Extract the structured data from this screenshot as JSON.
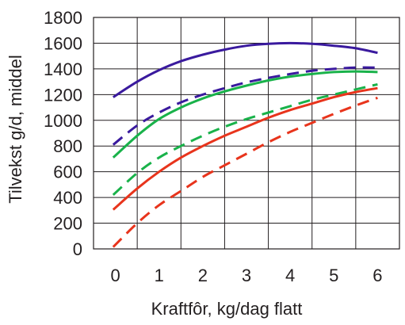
{
  "chart_data": {
    "type": "line",
    "xlabel": "Kraftfôr, kg/dag flatt",
    "ylabel": "Tilvekst g/d, middel",
    "xlim": [
      -0.5,
      6.5
    ],
    "ylim": [
      0,
      1800
    ],
    "x_ticks": [
      0,
      1,
      2,
      3,
      4,
      5,
      6
    ],
    "y_ticks": [
      0,
      200,
      400,
      600,
      800,
      1000,
      1200,
      1400,
      1600,
      1800
    ],
    "x_tick_labels": [
      "0",
      "1",
      "2",
      "3",
      "4",
      "5",
      "6"
    ],
    "y_tick_labels": [
      "0",
      "200",
      "400",
      "600",
      "800",
      "1000",
      "1200",
      "1400",
      "1600",
      "1800"
    ],
    "grid": true,
    "legend": "none",
    "series": [
      {
        "color": "#3a1a9e",
        "dash": "solid",
        "x": [
          -0.05,
          0.5,
          1,
          1.5,
          2,
          2.5,
          3,
          3.5,
          4,
          4.5,
          5,
          5.5,
          6
        ],
        "y": [
          1180,
          1300,
          1390,
          1460,
          1510,
          1550,
          1580,
          1595,
          1600,
          1595,
          1580,
          1560,
          1525
        ]
      },
      {
        "color": "#3a1a9e",
        "dash": "dashed",
        "x": [
          -0.05,
          0.5,
          1,
          1.5,
          2,
          2.5,
          3,
          3.5,
          4,
          4.5,
          5,
          5.5,
          6
        ],
        "y": [
          810,
          960,
          1060,
          1140,
          1200,
          1250,
          1295,
          1330,
          1360,
          1385,
          1400,
          1410,
          1410
        ]
      },
      {
        "color": "#19b24a",
        "dash": "solid",
        "x": [
          -0.05,
          0.5,
          1,
          1.5,
          2,
          2.5,
          3,
          3.5,
          4,
          4.5,
          5,
          5.5,
          6
        ],
        "y": [
          710,
          880,
          1010,
          1100,
          1170,
          1225,
          1270,
          1310,
          1340,
          1360,
          1375,
          1380,
          1375
        ]
      },
      {
        "color": "#19b24a",
        "dash": "dashed",
        "x": [
          -0.05,
          0.5,
          1,
          1.5,
          2,
          2.5,
          3,
          3.5,
          4,
          4.5,
          5,
          5.5,
          6
        ],
        "y": [
          420,
          590,
          710,
          800,
          880,
          950,
          1010,
          1060,
          1110,
          1160,
          1200,
          1240,
          1280
        ]
      },
      {
        "color": "#e8341c",
        "dash": "solid",
        "x": [
          -0.05,
          0.5,
          1,
          1.5,
          2,
          2.5,
          3,
          3.5,
          4,
          4.5,
          5,
          5.5,
          6
        ],
        "y": [
          305,
          470,
          600,
          710,
          800,
          880,
          950,
          1020,
          1080,
          1130,
          1180,
          1220,
          1250
        ]
      },
      {
        "color": "#e8341c",
        "dash": "dashed",
        "x": [
          -0.05,
          0.5,
          1,
          1.5,
          2,
          2.5,
          3,
          3.5,
          4,
          4.5,
          5,
          5.5,
          6
        ],
        "y": [
          15,
          200,
          340,
          450,
          560,
          650,
          740,
          830,
          910,
          980,
          1050,
          1115,
          1175
        ]
      }
    ]
  }
}
